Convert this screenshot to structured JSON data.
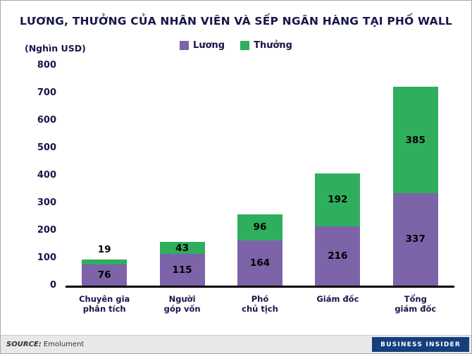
{
  "title": "LƯƠNG, THƯỞNG CỦA NHÂN VIÊN VÀ SẾP NGÂN HÀNG TẠI PHỐ WALL",
  "y_axis_unit": "(Nghìn USD)",
  "footer": {
    "source_label": "SOURCE:",
    "source_value": "Emolument",
    "brand": "BUSINESS INSIDER"
  },
  "colors": {
    "salary": "#7d63a8",
    "bonus": "#2fae5e",
    "heading_text": "#16164a",
    "brand_bg": "#143f7d"
  },
  "chart_data": {
    "type": "bar",
    "stacked": true,
    "title": "LƯƠNG, THƯỞNG CỦA NHÂN VIÊN VÀ SẾP NGÂN HÀNG TẠI PHỐ WALL",
    "unit": "Nghìn USD",
    "categories": [
      "Chuyên gia phân tích",
      "Người góp vốn",
      "Phó chủ tịch",
      "Giám đốc",
      "Tổng giám đốc"
    ],
    "category_lines": [
      [
        "Chuyên gia",
        "phân tích"
      ],
      [
        "Người",
        "góp vốn"
      ],
      [
        "Phó",
        "chủ tịch"
      ],
      [
        "Giám đốc"
      ],
      [
        "Tổng",
        "giám đốc"
      ]
    ],
    "series": [
      {
        "name": "Lương",
        "color": "#7d63a8",
        "values": [
          76,
          115,
          164,
          216,
          337
        ]
      },
      {
        "name": "Thưởng",
        "color": "#2fae5e",
        "values": [
          19,
          43,
          96,
          192,
          385
        ]
      }
    ],
    "totals": [
      95,
      158,
      260,
      408,
      722
    ],
    "ylim": [
      0,
      800
    ],
    "yticks": [
      0,
      100,
      200,
      300,
      400,
      500,
      600,
      700,
      800
    ],
    "legend_position": "top-center",
    "grid": false
  }
}
